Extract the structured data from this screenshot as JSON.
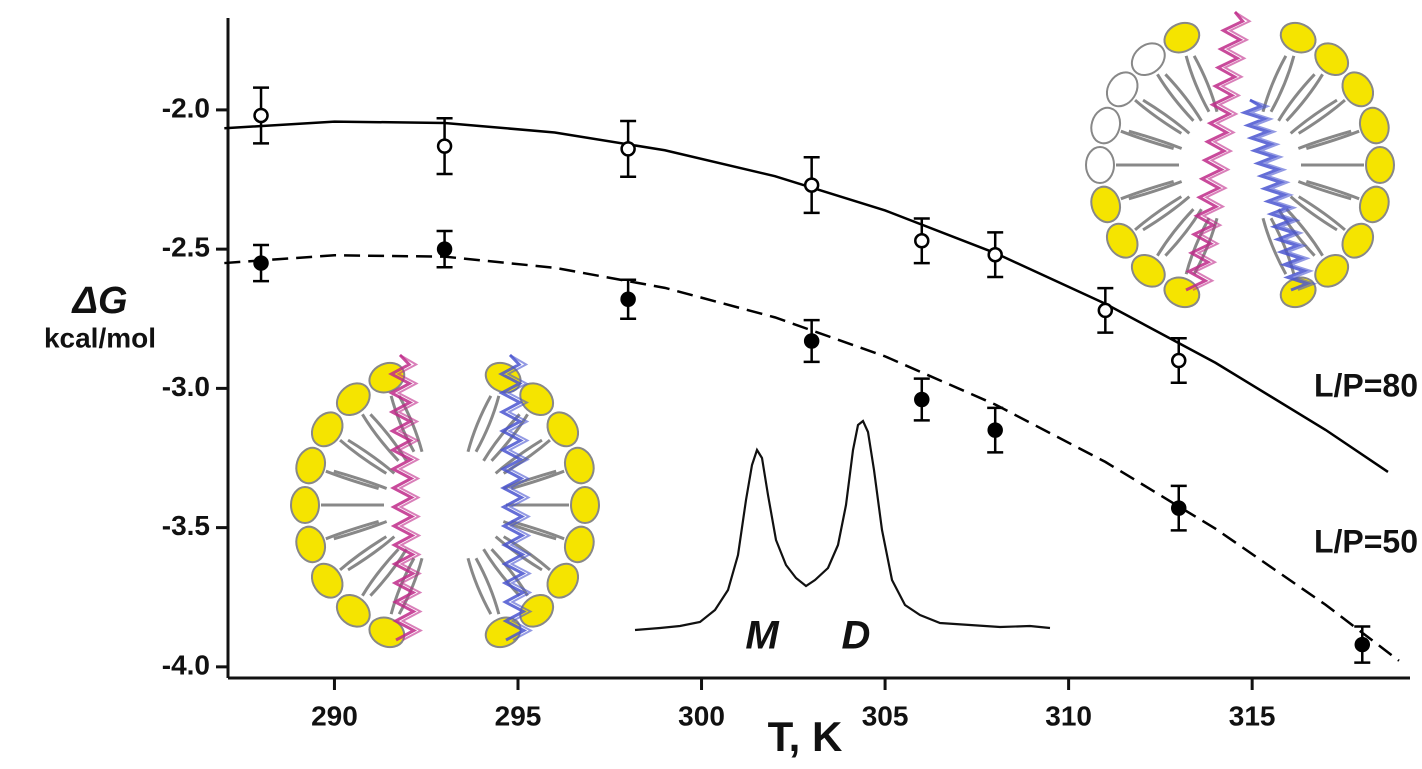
{
  "chart_data": {
    "type": "scatter",
    "x_label": "T, K",
    "y_label": "ΔG",
    "y_label_unit": "kcal/mol",
    "xlim": [
      287.1,
      319.3
    ],
    "ylim": [
      -4.04,
      -1.67
    ],
    "xticks": [
      290,
      295,
      300,
      305,
      310,
      315
    ],
    "yticks": [
      {
        "value": -2,
        "label": "-2.0"
      },
      -2.5,
      {
        "value": -3,
        "label": "-3.0"
      },
      -3.5,
      {
        "value": -4,
        "label": "-4.0"
      }
    ],
    "series": [
      {
        "name": "L/P=80",
        "color": "#000000",
        "marker": "open",
        "dashed": false,
        "x": [
          288,
          293,
          298,
          303,
          306,
          308,
          311,
          313
        ],
        "values": [
          -2.02,
          -2.13,
          -2.14,
          -2.27,
          -2.47,
          -2.52,
          -2.72,
          -2.9
        ],
        "errors": [
          0.1,
          0.1,
          0.1,
          0.1,
          0.08,
          0.08,
          0.08,
          0.08
        ],
        "fit_x": [
          287,
          290,
          293,
          296,
          299,
          302,
          305,
          308,
          311,
          314,
          317,
          318.7
        ],
        "fit": [
          -2.066,
          -2.042,
          -2.047,
          -2.081,
          -2.145,
          -2.238,
          -2.361,
          -2.514,
          -2.696,
          -2.908,
          -3.149,
          -3.3
        ]
      },
      {
        "name": "L/P=50",
        "color": "#000000",
        "marker": "filled",
        "dashed": true,
        "x": [
          288,
          293,
          298,
          303,
          306,
          308,
          313,
          318
        ],
        "values": [
          -2.55,
          -2.5,
          -2.68,
          -2.83,
          -3.04,
          -3.15,
          -3.43,
          -3.92
        ],
        "errors": [
          0.065,
          0.065,
          0.07,
          0.075,
          0.075,
          0.08,
          0.08,
          0.065
        ],
        "fit_x": [
          287,
          290,
          293,
          296,
          299,
          302,
          305,
          308,
          311,
          314,
          317,
          319
        ],
        "fit": [
          -2.55,
          -2.522,
          -2.527,
          -2.567,
          -2.639,
          -2.745,
          -2.885,
          -3.058,
          -3.264,
          -3.504,
          -3.777,
          -3.978
        ]
      }
    ],
    "inset_labels": [
      "M",
      "D"
    ]
  }
}
